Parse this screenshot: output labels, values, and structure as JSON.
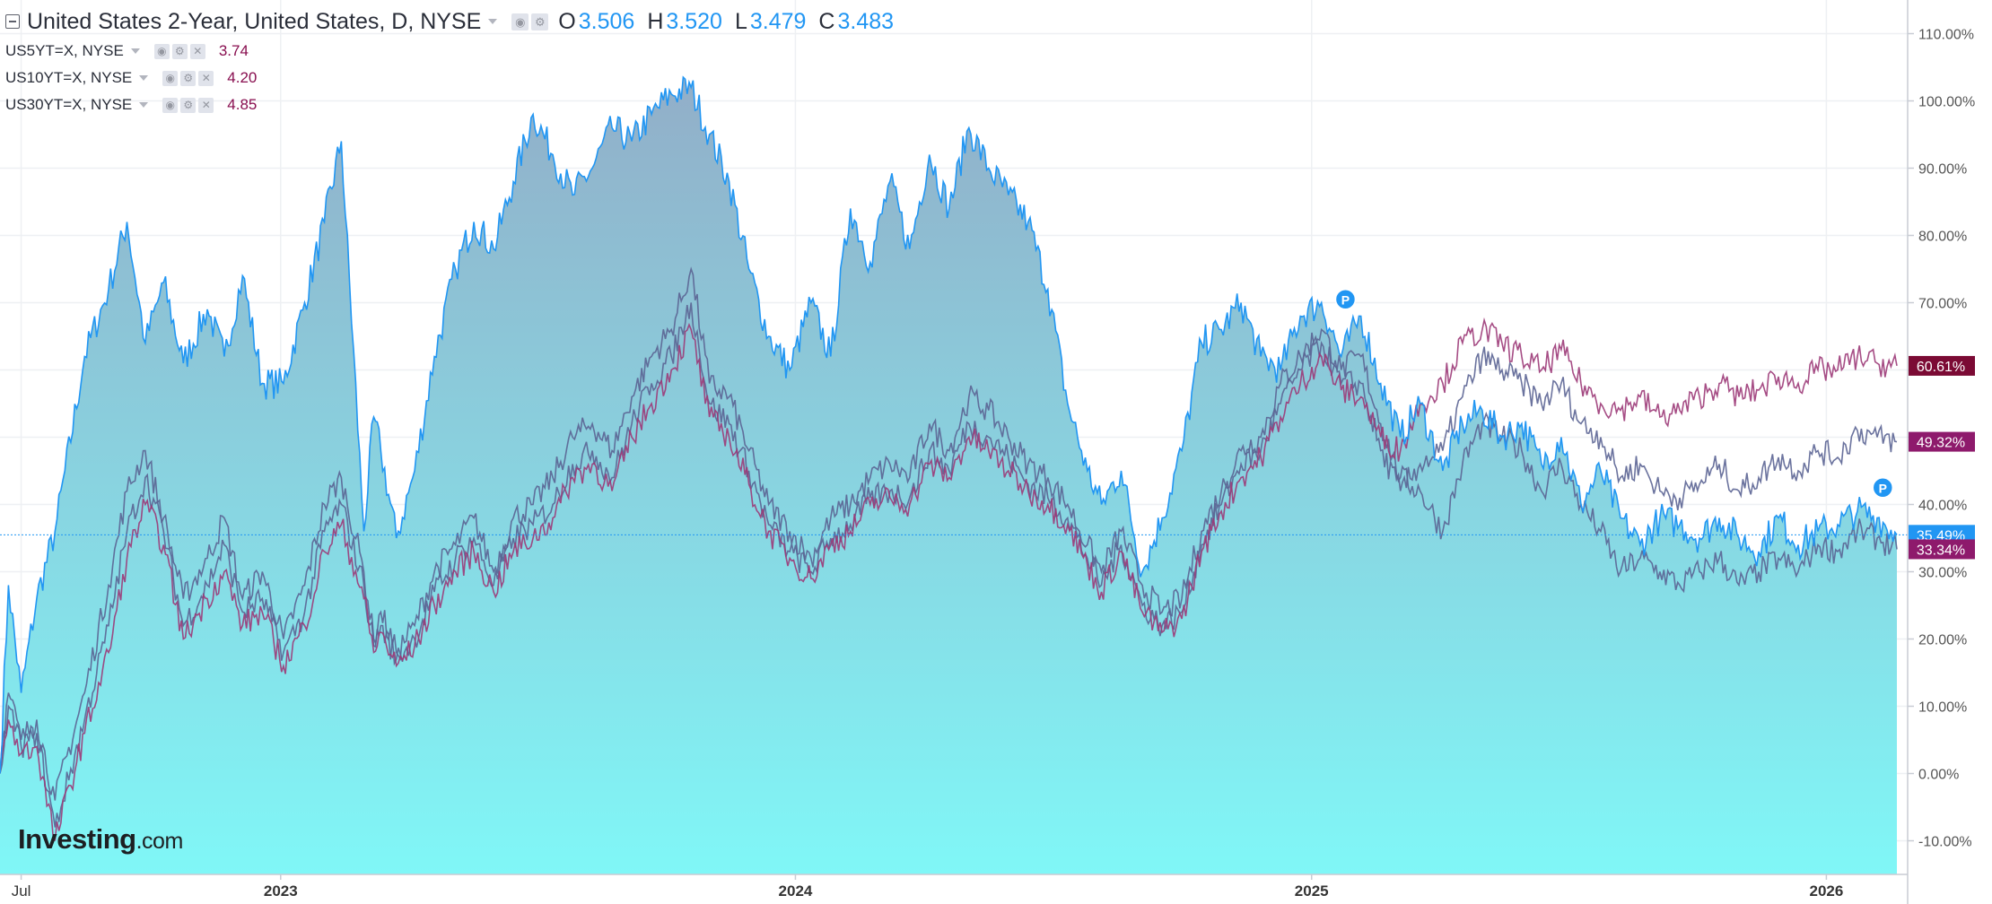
{
  "header": {
    "title": "United States 2-Year, United States, D, NYSE",
    "ohlc": [
      {
        "label": "O",
        "value": "3.506"
      },
      {
        "label": "H",
        "value": "3.520"
      },
      {
        "label": "L",
        "value": "3.479"
      },
      {
        "label": "C",
        "value": "3.483"
      }
    ]
  },
  "comparisons": [
    {
      "name": "US5YT=X, NYSE",
      "value": "3.74"
    },
    {
      "name": "US10YT=X, NYSE",
      "value": "4.20"
    },
    {
      "name": "US30YT=X, NYSE",
      "value": "4.85"
    }
  ],
  "brand": {
    "name": "Investing",
    "suffix": ".com"
  },
  "colors": {
    "main_line": "#2196f3",
    "area_top": "#92aec8",
    "area_bottom": "#80f7f7",
    "compare_dark": "#5b6494",
    "compare_purple": "#9c3a78",
    "price_label_blue": "#2196f3",
    "price_label_purple": "#8e1a6c",
    "price_label_maroon": "#7b0a34"
  },
  "chart_data": {
    "type": "area",
    "x_range": [
      "2022-06-16",
      "2026-02-20"
    ],
    "ylim": [
      -15,
      115
    ],
    "yticks": [
      -10,
      0,
      10,
      20,
      30,
      40,
      50,
      60,
      70,
      80,
      90,
      100,
      110
    ],
    "ytick_labels": [
      "-10.00%",
      "0.00%",
      "10.00%",
      "20.00%",
      "30.00%",
      "40.00%",
      "50.00%",
      "60.00%",
      "70.00%",
      "80.00%",
      "90.00%",
      "100.00%",
      "110.00%"
    ],
    "xtick_labels": [
      {
        "date": "2022-07-01",
        "label": "Jul",
        "bold": false
      },
      {
        "date": "2023-01-01",
        "label": "2023",
        "bold": true
      },
      {
        "date": "2024-01-01",
        "label": "2024",
        "bold": true
      },
      {
        "date": "2025-01-01",
        "label": "2025",
        "bold": true
      },
      {
        "date": "2026-01-01",
        "label": "2026",
        "bold": true
      }
    ],
    "grid": true,
    "series": [
      {
        "role": "main",
        "x": [
          "2022-06-16",
          "2022-06-22",
          "2022-07-01",
          "2022-07-12",
          "2022-07-25",
          "2022-08-15",
          "2022-09-01",
          "2022-09-14",
          "2022-09-27",
          "2022-10-10",
          "2022-10-24",
          "2022-11-10",
          "2022-11-22",
          "2022-12-05",
          "2022-12-19",
          "2023-01-03",
          "2023-01-18",
          "2023-02-01",
          "2023-02-13",
          "2023-03-01",
          "2023-03-08",
          "2023-03-13",
          "2023-03-24",
          "2023-04-06",
          "2023-04-20",
          "2023-05-05",
          "2023-05-18",
          "2023-06-01",
          "2023-06-15",
          "2023-06-29",
          "2023-07-13",
          "2023-07-27",
          "2023-08-10",
          "2023-08-24",
          "2023-09-07",
          "2023-09-21",
          "2023-10-05",
          "2023-10-19",
          "2023-11-01",
          "2023-11-15",
          "2023-11-29",
          "2023-12-13",
          "2023-12-28",
          "2024-01-12",
          "2024-01-26",
          "2024-02-09",
          "2024-02-23",
          "2024-03-08",
          "2024-03-22",
          "2024-04-05",
          "2024-04-19",
          "2024-05-03",
          "2024-05-17",
          "2024-05-31",
          "2024-06-14",
          "2024-06-28",
          "2024-07-12",
          "2024-07-26",
          "2024-08-05",
          "2024-08-19",
          "2024-09-03",
          "2024-09-17",
          "2024-10-01",
          "2024-10-15",
          "2024-10-29",
          "2024-11-12",
          "2024-11-26",
          "2024-12-10",
          "2024-12-24",
          "2025-01-08",
          "2025-01-22",
          "2025-02-05",
          "2025-02-19",
          "2025-03-05",
          "2025-03-19",
          "2025-04-04",
          "2025-04-18",
          "2025-05-02",
          "2025-05-16",
          "2025-05-30",
          "2025-06-13",
          "2025-06-27",
          "2025-07-11",
          "2025-07-25",
          "2025-08-08",
          "2025-08-22",
          "2025-09-05",
          "2025-09-19",
          "2025-10-03",
          "2025-10-17",
          "2025-10-31",
          "2025-11-14",
          "2025-11-28",
          "2025-12-12",
          "2025-12-26",
          "2026-01-09",
          "2026-01-23",
          "2026-02-06",
          "2026-02-20"
        ],
        "values": [
          0,
          28,
          12,
          26,
          36,
          62,
          72,
          82,
          64,
          73,
          61,
          69,
          62,
          74,
          58,
          58,
          70,
          82,
          94,
          36,
          53,
          48,
          35,
          45,
          62,
          75,
          82,
          78,
          88,
          98,
          92,
          86,
          90,
          96,
          94,
          98,
          101,
          102,
          95,
          88,
          75,
          65,
          60,
          70,
          62,
          84,
          76,
          88,
          78,
          92,
          84,
          96,
          90,
          86,
          82,
          72,
          55,
          45,
          40,
          45,
          30,
          38,
          48,
          64,
          66,
          70,
          62,
          60,
          68,
          70,
          62,
          68,
          58,
          50,
          55,
          45,
          52,
          54,
          50,
          52,
          46,
          50,
          40,
          45,
          38,
          34,
          38,
          37,
          35,
          38,
          35,
          33,
          38,
          34,
          36,
          37,
          39,
          38,
          35.49
        ]
      },
      {
        "role": "compare",
        "x": [
          "2022-06-16",
          "2022-06-22",
          "2022-07-01",
          "2022-07-12",
          "2022-07-25",
          "2022-08-15",
          "2022-09-01",
          "2022-09-14",
          "2022-09-27",
          "2022-10-10",
          "2022-10-24",
          "2022-11-10",
          "2022-11-22",
          "2022-12-05",
          "2022-12-19",
          "2023-01-03",
          "2023-01-18",
          "2023-02-01",
          "2023-02-13",
          "2023-03-01",
          "2023-03-08",
          "2023-03-13",
          "2023-03-24",
          "2023-04-06",
          "2023-04-20",
          "2023-05-05",
          "2023-05-18",
          "2023-06-01",
          "2023-06-15",
          "2023-06-29",
          "2023-07-13",
          "2023-07-27",
          "2023-08-10",
          "2023-08-24",
          "2023-09-07",
          "2023-09-21",
          "2023-10-05",
          "2023-10-19",
          "2023-11-01",
          "2023-11-15",
          "2023-11-29",
          "2023-12-13",
          "2023-12-28",
          "2024-01-12",
          "2024-01-26",
          "2024-02-09",
          "2024-02-23",
          "2024-03-08",
          "2024-03-22",
          "2024-04-05",
          "2024-04-19",
          "2024-05-03",
          "2024-05-17",
          "2024-05-31",
          "2024-06-14",
          "2024-06-28",
          "2024-07-12",
          "2024-07-26",
          "2024-08-05",
          "2024-08-19",
          "2024-09-03",
          "2024-09-17",
          "2024-10-01",
          "2024-10-15",
          "2024-10-29",
          "2024-11-12",
          "2024-11-26",
          "2024-12-10",
          "2024-12-24",
          "2025-01-08",
          "2025-01-22",
          "2025-02-05",
          "2025-02-19",
          "2025-03-05",
          "2025-03-19",
          "2025-04-04",
          "2025-04-18",
          "2025-05-02",
          "2025-05-16",
          "2025-05-30",
          "2025-06-13",
          "2025-06-27",
          "2025-07-11",
          "2025-07-25",
          "2025-08-08",
          "2025-08-22",
          "2025-09-05",
          "2025-09-19",
          "2025-10-03",
          "2025-10-17",
          "2025-10-31",
          "2025-11-14",
          "2025-11-28",
          "2025-12-12",
          "2025-12-26",
          "2026-01-09",
          "2026-01-23",
          "2026-02-06",
          "2026-02-20"
        ],
        "values": [
          0,
          12,
          5,
          8,
          -4,
          12,
          28,
          42,
          48,
          38,
          26,
          32,
          38,
          26,
          30,
          20,
          28,
          40,
          44,
          30,
          20,
          24,
          18,
          22,
          30,
          34,
          38,
          30,
          38,
          40,
          44,
          50,
          52,
          48,
          56,
          62,
          66,
          75,
          58,
          56,
          48,
          40,
          36,
          32,
          38,
          40,
          44,
          46,
          44,
          52,
          48,
          56,
          54,
          50,
          46,
          44,
          40,
          34,
          30,
          36,
          28,
          24,
          26,
          36,
          42,
          48,
          50,
          58,
          62,
          66,
          60,
          62,
          52,
          44,
          42,
          36,
          46,
          52,
          50,
          48,
          42,
          46,
          40,
          36,
          30,
          32,
          30,
          28,
          30,
          32,
          28,
          30,
          32,
          30,
          34,
          33,
          36,
          35,
          33.34
        ]
      },
      {
        "role": "compare",
        "x": [
          "2022-06-16",
          "2022-06-22",
          "2022-07-01",
          "2022-07-12",
          "2022-07-25",
          "2022-08-15",
          "2022-09-01",
          "2022-09-14",
          "2022-09-27",
          "2022-10-10",
          "2022-10-24",
          "2022-11-10",
          "2022-11-22",
          "2022-12-05",
          "2022-12-19",
          "2023-01-03",
          "2023-01-18",
          "2023-02-01",
          "2023-02-13",
          "2023-03-01",
          "2023-03-08",
          "2023-03-13",
          "2023-03-24",
          "2023-04-06",
          "2023-04-20",
          "2023-05-05",
          "2023-05-18",
          "2023-06-01",
          "2023-06-15",
          "2023-06-29",
          "2023-07-13",
          "2023-07-27",
          "2023-08-10",
          "2023-08-24",
          "2023-09-07",
          "2023-09-21",
          "2023-10-05",
          "2023-10-19",
          "2023-11-01",
          "2023-11-15",
          "2023-11-29",
          "2023-12-13",
          "2023-12-28",
          "2024-01-12",
          "2024-01-26",
          "2024-02-09",
          "2024-02-23",
          "2024-03-08",
          "2024-03-22",
          "2024-04-05",
          "2024-04-19",
          "2024-05-03",
          "2024-05-17",
          "2024-05-31",
          "2024-06-14",
          "2024-06-28",
          "2024-07-12",
          "2024-07-26",
          "2024-08-05",
          "2024-08-19",
          "2024-09-03",
          "2024-09-17",
          "2024-10-01",
          "2024-10-15",
          "2024-10-29",
          "2024-11-12",
          "2024-11-26",
          "2024-12-10",
          "2024-12-24",
          "2025-01-08",
          "2025-01-22",
          "2025-02-05",
          "2025-02-19",
          "2025-03-05",
          "2025-03-19",
          "2025-04-04",
          "2025-04-18",
          "2025-05-02",
          "2025-05-16",
          "2025-05-30",
          "2025-06-13",
          "2025-06-27",
          "2025-07-11",
          "2025-07-25",
          "2025-08-08",
          "2025-08-22",
          "2025-09-05",
          "2025-09-19",
          "2025-10-03",
          "2025-10-17",
          "2025-10-31",
          "2025-11-14",
          "2025-11-28",
          "2025-12-12",
          "2025-12-26",
          "2026-01-09",
          "2026-01-23",
          "2026-02-06",
          "2026-02-20"
        ],
        "values": [
          0,
          10,
          4,
          6,
          -8,
          8,
          22,
          36,
          44,
          36,
          22,
          28,
          34,
          24,
          26,
          18,
          24,
          36,
          40,
          28,
          19,
          22,
          17,
          20,
          27,
          32,
          35,
          28,
          35,
          37,
          40,
          46,
          48,
          44,
          52,
          58,
          62,
          70,
          55,
          52,
          45,
          37,
          33,
          30,
          35,
          37,
          41,
          42,
          41,
          48,
          45,
          52,
          50,
          47,
          43,
          41,
          38,
          32,
          28,
          34,
          25,
          22,
          24,
          34,
          40,
          46,
          48,
          55,
          60,
          64,
          58,
          58,
          48,
          42,
          46,
          48,
          56,
          62,
          60,
          58,
          55,
          58,
          52,
          50,
          44,
          46,
          42,
          41,
          43,
          46,
          42,
          44,
          47,
          45,
          48,
          47,
          51,
          50,
          49.32
        ]
      },
      {
        "role": "compare",
        "x": [
          "2022-06-16",
          "2022-06-22",
          "2022-07-01",
          "2022-07-12",
          "2022-07-25",
          "2022-08-15",
          "2022-09-01",
          "2022-09-14",
          "2022-09-27",
          "2022-10-10",
          "2022-10-24",
          "2022-11-10",
          "2022-11-22",
          "2022-12-05",
          "2022-12-19",
          "2023-01-03",
          "2023-01-18",
          "2023-02-01",
          "2023-02-13",
          "2023-03-01",
          "2023-03-08",
          "2023-03-13",
          "2023-03-24",
          "2023-04-06",
          "2023-04-20",
          "2023-05-05",
          "2023-05-18",
          "2023-06-01",
          "2023-06-15",
          "2023-06-29",
          "2023-07-13",
          "2023-07-27",
          "2023-08-10",
          "2023-08-24",
          "2023-09-07",
          "2023-09-21",
          "2023-10-05",
          "2023-10-19",
          "2023-11-01",
          "2023-11-15",
          "2023-11-29",
          "2023-12-13",
          "2023-12-28",
          "2024-01-12",
          "2024-01-26",
          "2024-02-09",
          "2024-02-23",
          "2024-03-08",
          "2024-03-22",
          "2024-04-05",
          "2024-04-19",
          "2024-05-03",
          "2024-05-17",
          "2024-05-31",
          "2024-06-14",
          "2024-06-28",
          "2024-07-12",
          "2024-07-26",
          "2024-08-05",
          "2024-08-19",
          "2024-09-03",
          "2024-09-17",
          "2024-10-01",
          "2024-10-15",
          "2024-10-29",
          "2024-11-12",
          "2024-11-26",
          "2024-12-10",
          "2024-12-24",
          "2025-01-08",
          "2025-01-22",
          "2025-02-05",
          "2025-02-19",
          "2025-03-05",
          "2025-03-19",
          "2025-04-04",
          "2025-04-18",
          "2025-05-02",
          "2025-05-16",
          "2025-05-30",
          "2025-06-13",
          "2025-06-27",
          "2025-07-11",
          "2025-07-25",
          "2025-08-08",
          "2025-08-22",
          "2025-09-05",
          "2025-09-19",
          "2025-10-03",
          "2025-10-17",
          "2025-10-31",
          "2025-11-14",
          "2025-11-28",
          "2025-12-12",
          "2025-12-26",
          "2026-01-09",
          "2026-01-23",
          "2026-02-06",
          "2026-02-20"
        ],
        "values": [
          0,
          8,
          3,
          4,
          -10,
          6,
          18,
          32,
          40,
          34,
          20,
          26,
          30,
          22,
          24,
          16,
          22,
          33,
          37,
          26,
          18,
          21,
          16,
          19,
          25,
          30,
          33,
          27,
          33,
          35,
          38,
          44,
          46,
          42,
          50,
          55,
          60,
          66,
          53,
          50,
          43,
          36,
          32,
          29,
          34,
          36,
          40,
          41,
          40,
          46,
          44,
          50,
          48,
          45,
          42,
          40,
          37,
          31,
          27,
          33,
          24,
          21,
          23,
          33,
          39,
          44,
          47,
          53,
          58,
          62,
          57,
          56,
          50,
          48,
          55,
          58,
          64,
          66,
          64,
          62,
          60,
          63,
          58,
          55,
          54,
          56,
          53,
          54,
          56,
          58,
          56,
          57,
          59,
          58,
          60,
          60,
          62,
          61,
          60.61
        ]
      }
    ],
    "price_labels": [
      {
        "value": 60.61,
        "text": "60.61%",
        "color": "#7b0a34"
      },
      {
        "value": 49.32,
        "text": "49.32%",
        "color": "#8e1a6c"
      },
      {
        "value": 35.49,
        "text": "35.49%",
        "color": "#2196f3"
      },
      {
        "value": 33.34,
        "text": "33.34%",
        "color": "#8e1a6c"
      }
    ],
    "markers": [
      {
        "date": "2025-01-25",
        "value": 70.5,
        "text": "P"
      },
      {
        "date": "2026-02-10",
        "value": 42.5,
        "text": "P"
      }
    ]
  }
}
